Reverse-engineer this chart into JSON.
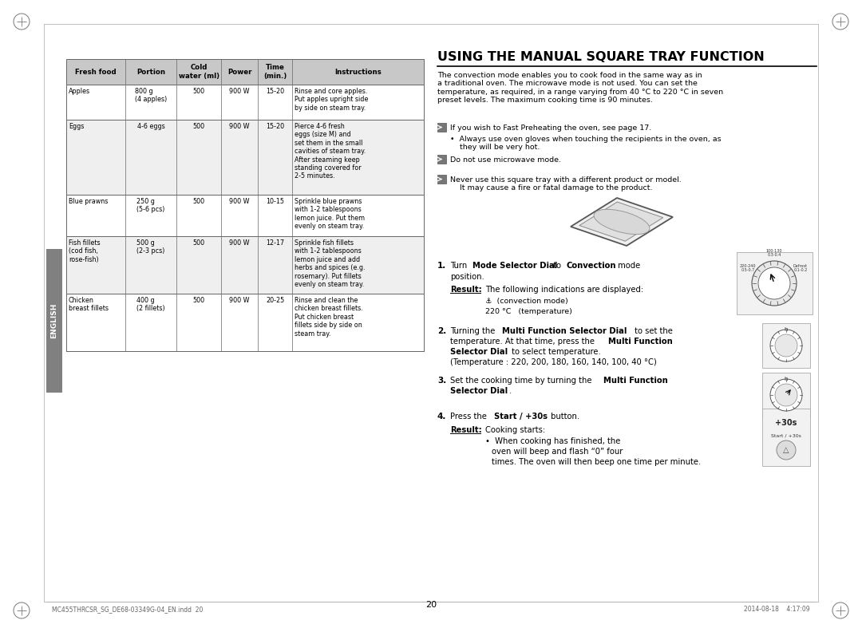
{
  "page_bg": "#ffffff",
  "title": "USING THE MANUAL SQUARE TRAY FUNCTION",
  "intro_text": "The convection mode enables you to cook food in the same way as in\na traditional oven. The microwave mode is not used. You can set the\ntemperature, as required, in a range varying from 40 °C to 220 °C in seven\npreset levels. The maximum cooking time is 90 minutes.",
  "note1": "If you wish to Fast Preheating the oven, see page 17.",
  "note1b": "•  Always use oven gloves when touching the recipients in the oven, as\n    they will be very hot.",
  "note2": "Do not use microwave mode.",
  "note3": "Never use this square tray with a different product or model.\n    It may cause a fire or fatal damage to the product.",
  "result_label": "Result:",
  "result_text": "The following indications are displayed:",
  "result_item1": "⚓  (convection mode)",
  "result_item2": "220 °C   (temperature)",
  "page_number": "20",
  "footer_left": "MC455THRCSR_SG_DE68-03349G-04_EN.indd  20",
  "footer_right": "2014-08-18    4:17:09",
  "table_headers": [
    "Fresh food",
    "Portion",
    "Cold\nwater (ml)",
    "Power",
    "Time\n(min.)",
    "Instructions"
  ],
  "table_rows": [
    [
      "Apples",
      "800 g\n(4 apples)",
      "500",
      "900 W",
      "15-20",
      "Rinse and core apples.\nPut apples upright side\nby side on steam tray."
    ],
    [
      "Eggs",
      "4-6 eggs",
      "500",
      "900 W",
      "15-20",
      "Pierce 4-6 fresh\neggs (size M) and\nset them in the small\ncavities of steam tray.\nAfter steaming keep\nstanding covered for\n2-5 minutes."
    ],
    [
      "Blue prawns",
      "250 g\n(5-6 pcs)",
      "500",
      "900 W",
      "10-15",
      "Sprinkle blue prawns\nwith 1-2 tablespoons\nlemon juice. Put them\nevenly on steam tray."
    ],
    [
      "Fish fillets\n(cod fish,\nrose-fish)",
      "500 g\n(2-3 pcs)",
      "500",
      "900 W",
      "12-17",
      "Sprinkle fish fillets\nwith 1-2 tablespoons\nlemon juice and add\nherbs and spices (e.g.\nrosemary). Put fillets\nevenly on steam tray."
    ],
    [
      "Chicken\nbreast fillets",
      "400 g\n(2 fillets)",
      "500",
      "900 W",
      "20-25",
      "Rinse and clean the\nchicken breast fillets.\nPut chicken breast\nfillets side by side on\nsteam tray."
    ]
  ],
  "sidebar_color": "#808080",
  "sidebar_text": "ENGLISH",
  "header_bg": "#c8c8c8",
  "row_bg_odd": "#efefef",
  "row_bg_even": "#ffffff",
  "text_color": "#000000",
  "border_color": "#666666"
}
